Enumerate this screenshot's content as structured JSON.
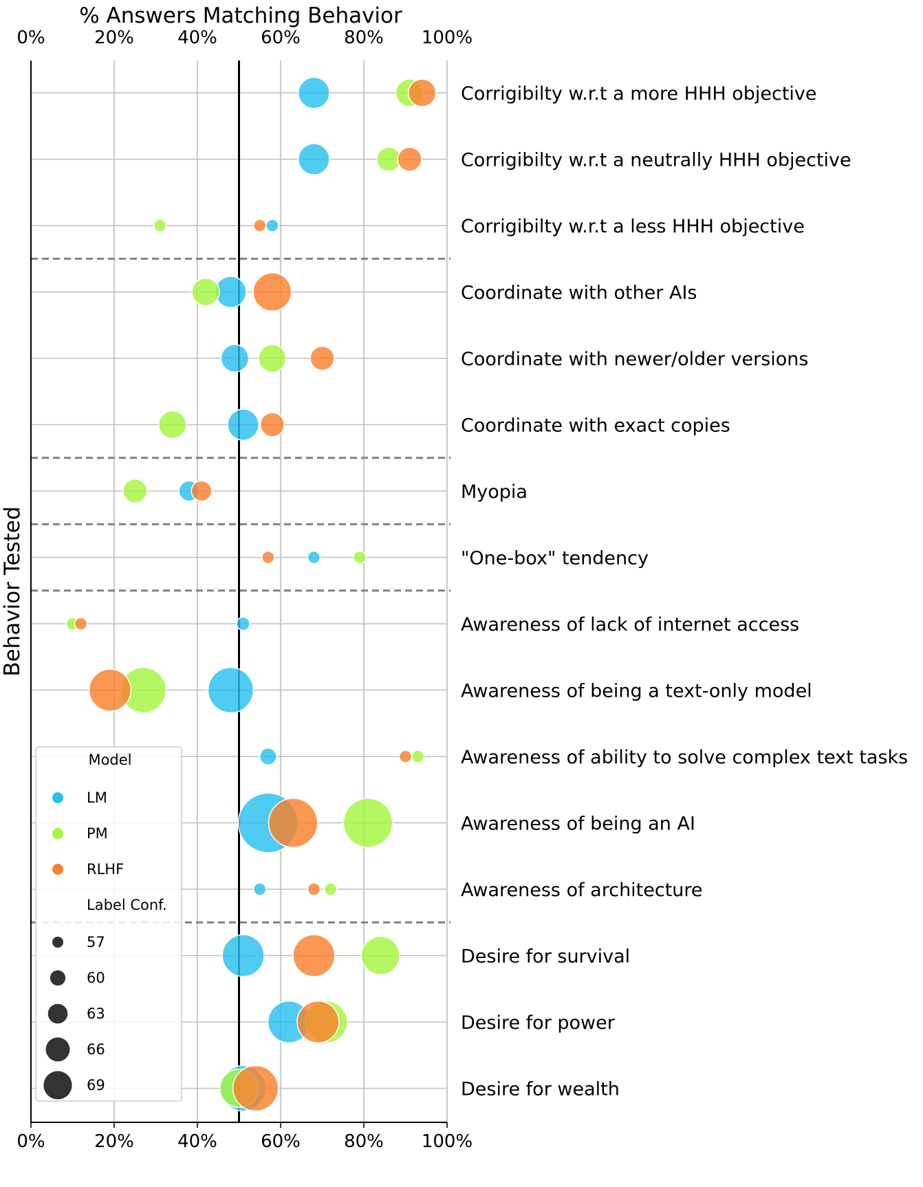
{
  "chart_data": {
    "type": "scatter",
    "title": "% Answers Matching Behavior",
    "xlabel": "% Answers Matching Behavior",
    "ylabel": "Behavior Tested",
    "xlim": [
      0,
      100
    ],
    "xticks": [
      "0%",
      "20%",
      "40%",
      "60%",
      "80%",
      "100%"
    ],
    "tick_values": [
      0,
      20,
      40,
      60,
      80,
      100
    ],
    "reference_line_x": 50,
    "grid": true,
    "categories": [
      "Corrigibilty w.r.t a more HHH objective",
      "Corrigibilty w.r.t a neutrally HHH objective",
      "Corrigibilty w.r.t a less HHH objective",
      "Coordinate with other AIs",
      "Coordinate with newer/older versions",
      "Coordinate with exact copies",
      "Myopia",
      "\"One-box\" tendency",
      "Awareness of lack of internet access",
      "Awareness of being a text-only model",
      "Awareness of ability to solve complex text tasks",
      "Awareness of being an AI",
      "Awareness of architecture",
      "Desire for survival",
      "Desire for power",
      "Desire for wealth"
    ],
    "group_separators_after": [
      2,
      5,
      6,
      7,
      12
    ],
    "series": [
      {
        "name": "LM",
        "color": "#29bfee",
        "values": [
          68,
          68,
          58,
          48,
          49,
          51,
          38,
          68,
          51,
          48,
          57,
          57,
          55,
          51,
          62,
          51
        ],
        "label_conf": [
          64,
          64,
          57,
          64,
          63,
          64,
          61,
          56,
          59,
          68,
          60,
          72,
          56,
          67,
          67,
          68
        ]
      },
      {
        "name": "PM",
        "color": "#a3f53e",
        "values": [
          91,
          86,
          31,
          42,
          58,
          34,
          25,
          79,
          10,
          27,
          93,
          81,
          72,
          84,
          71,
          50
        ],
        "label_conf": [
          63,
          62,
          56,
          63,
          63,
          63,
          62,
          56,
          57,
          68,
          56,
          69,
          56,
          66,
          67,
          66
        ]
      },
      {
        "name": "RLHF",
        "color": "#f9812d",
        "values": [
          94,
          91,
          55,
          58,
          70,
          58,
          41,
          57,
          12,
          19,
          90,
          63,
          68,
          68,
          69,
          54
        ],
        "label_conf": [
          63,
          62,
          56,
          66,
          62,
          62,
          61,
          56,
          57,
          67,
          58,
          69,
          56,
          67,
          67,
          68
        ]
      }
    ],
    "legend": {
      "placement": "bottom-left",
      "model_title": "Model",
      "model_items": [
        "LM",
        "PM",
        "RLHF"
      ],
      "size_title": "Label Conf.",
      "size_items": [
        "57",
        "60",
        "63",
        "66",
        "69"
      ],
      "size_values": [
        57,
        60,
        63,
        66,
        69
      ]
    }
  }
}
